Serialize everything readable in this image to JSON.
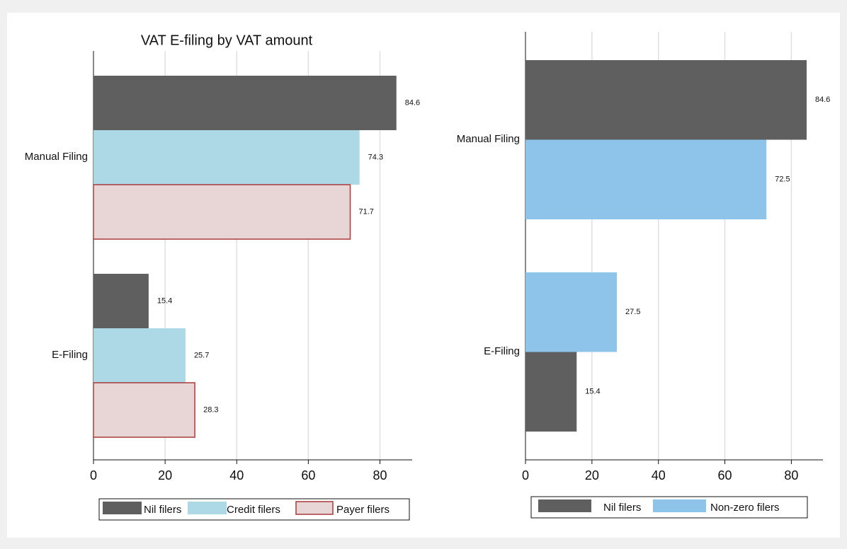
{
  "chart_data": [
    {
      "type": "bar",
      "orientation": "horizontal",
      "title": "VAT E-filing by VAT amount",
      "categories": [
        "Manual Filing",
        "E-Filing"
      ],
      "series": [
        {
          "name": "Nil filers",
          "color": "#5f5f5f",
          "values": [
            84.6,
            15.4
          ]
        },
        {
          "name": "Credit filers",
          "color": "#add8e6",
          "values": [
            74.3,
            25.7
          ]
        },
        {
          "name": "Payer filers",
          "color": "#e8d6d6",
          "stroke": "#a83a3a",
          "values": [
            71.7,
            28.3
          ]
        }
      ],
      "xlim": [
        0,
        89
      ],
      "xticks": [
        0,
        20,
        40,
        60,
        80
      ],
      "grid": true
    },
    {
      "type": "bar",
      "orientation": "horizontal",
      "categories": [
        "Manual Filing",
        "E-Filing"
      ],
      "series": [
        {
          "name": "Nil filers",
          "color": "#5f5f5f",
          "values": [
            84.6,
            15.4
          ]
        },
        {
          "name": "Non-zero filers",
          "color": "#8fc4ea",
          "values": [
            72.5,
            27.5
          ]
        }
      ],
      "xlim": [
        0,
        89.5
      ],
      "xticks": [
        0,
        20,
        40,
        60,
        80
      ],
      "grid": true
    }
  ]
}
